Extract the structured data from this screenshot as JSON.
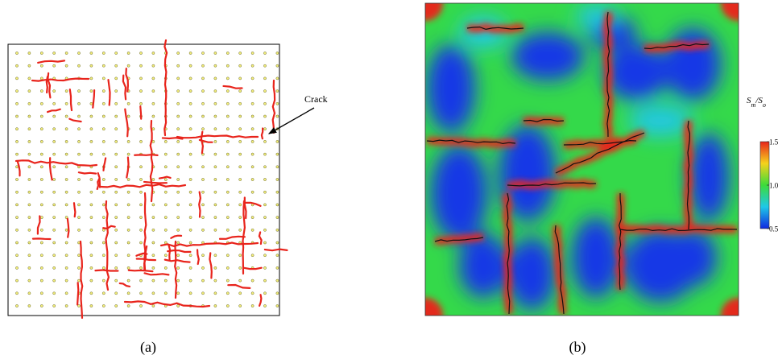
{
  "panel_a": {
    "caption": "(a)",
    "annotation": "Crack"
  },
  "panel_b": {
    "caption": "(b)",
    "colorbar": {
      "label_parts": [
        "S",
        "m",
        "/S",
        "o"
      ],
      "range": [
        0.5,
        1.5
      ],
      "ticks": [
        {
          "value": 0.5,
          "label": "0.5"
        },
        {
          "value": 1,
          "label": "1.0"
        },
        1.5
      ]
    }
  }
}
